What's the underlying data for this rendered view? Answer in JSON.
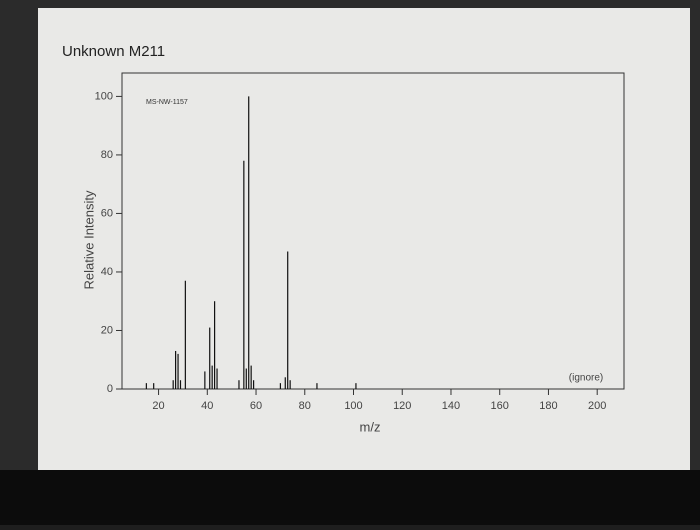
{
  "chart_data": {
    "type": "bar",
    "title": "Unknown M211",
    "annotations": [
      "MS-NW-1157",
      "(ignore)"
    ],
    "x_label": "m/z",
    "y_label": "Relative Intensity",
    "x": [
      15,
      18,
      26,
      27,
      28,
      29,
      31,
      39,
      41,
      42,
      43,
      44,
      53,
      55,
      56,
      57,
      58,
      59,
      70,
      72,
      73,
      74,
      85,
      101
    ],
    "values": [
      2,
      2,
      3,
      13,
      12,
      3,
      37,
      6,
      21,
      8,
      30,
      7,
      3,
      78,
      7,
      100,
      8,
      3,
      2,
      4,
      47,
      3,
      2,
      2
    ],
    "color": "#111111",
    "xlim": [
      5,
      211
    ],
    "ylim": [
      0,
      108
    ],
    "xticks": [
      20,
      40,
      60,
      80,
      100,
      120,
      140,
      160,
      180,
      200
    ],
    "yticks": [
      0,
      20,
      40,
      60,
      80,
      100
    ]
  }
}
